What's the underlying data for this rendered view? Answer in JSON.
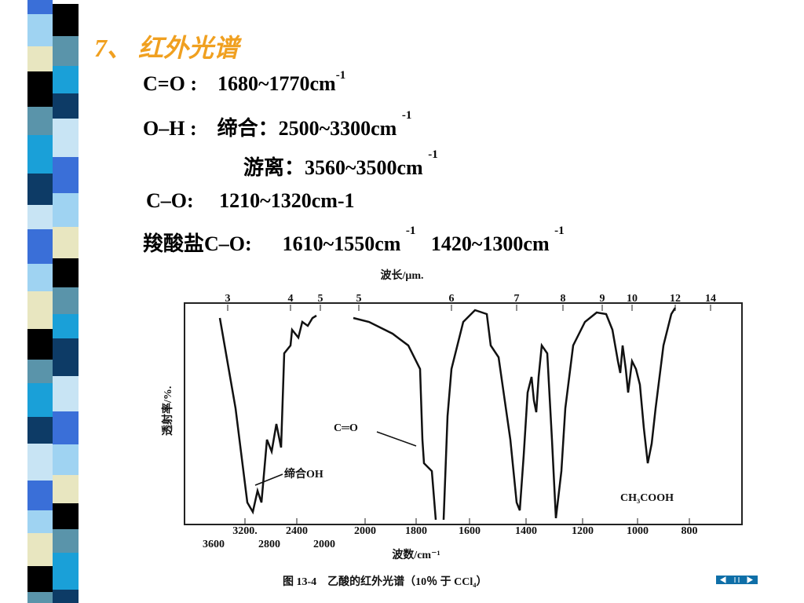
{
  "title": "7、 红外光谱",
  "lines": [
    [
      "C=O :",
      "1680~1770cm",
      "-1"
    ],
    [
      "O–H :",
      "缔合：2500~3300cm",
      "-1"
    ],
    [
      "游离：3560~3500cm",
      "-1"
    ],
    [
      "C–O:",
      "1210~1320cm-1"
    ],
    [
      "羧酸盐C–O:",
      "1610~1550cm",
      "-1",
      "1420~1300cm",
      "-1"
    ]
  ],
  "figure": {
    "top_axis_label": "波长/μm.",
    "top_ticks": [
      "3",
      "4",
      "5",
      "5",
      "6",
      "7",
      "8",
      "9",
      "10",
      "12",
      "14"
    ],
    "bottom_ticks_upper": [
      "3200.",
      "2400",
      "2000",
      "1800",
      "1600",
      "1400",
      "1200",
      "1000",
      "800"
    ],
    "bottom_ticks_lower": [
      "3600",
      "2800",
      "2000"
    ],
    "bottom_axis_label": "波数/cm⁻¹",
    "y_axis_label": "透射率/%.",
    "annotations": [
      "C═O",
      "缔合OH",
      "CH₃COOH"
    ],
    "caption": "图 13-4　乙酸的红外光谱（10％ 于 CCl₄）"
  }
}
